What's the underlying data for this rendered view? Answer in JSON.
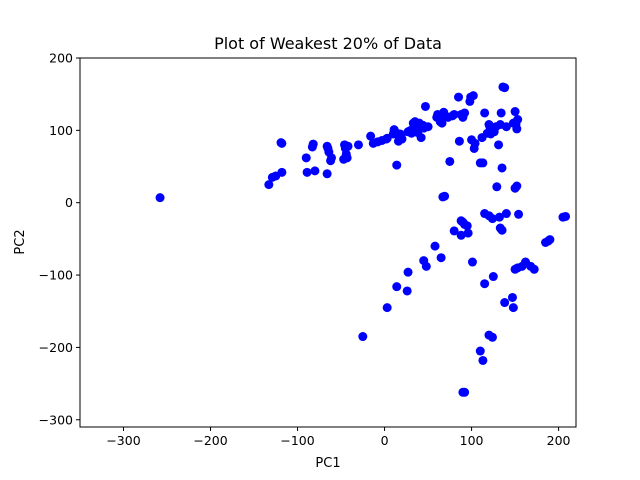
{
  "chart_data": {
    "type": "scatter",
    "title": "Plot of Weakest 20% of Data",
    "xlabel": "PC1",
    "ylabel": "PC2",
    "xlim": [
      -350,
      220
    ],
    "ylim": [
      -310,
      200
    ],
    "xticks": [
      -300,
      -200,
      -100,
      0,
      100,
      200
    ],
    "yticks": [
      -300,
      -200,
      -100,
      0,
      100,
      200
    ],
    "xtick_labels": [
      "−300",
      "−200",
      "−100",
      "0",
      "100",
      "200"
    ],
    "ytick_labels": [
      "−300",
      "−200",
      "−100",
      "0",
      "100",
      "200"
    ],
    "grid": false,
    "marker_color": "#0000ff",
    "points": [
      [
        -258,
        7
      ],
      [
        -133,
        25
      ],
      [
        -129,
        35
      ],
      [
        -125,
        37
      ],
      [
        -118,
        42
      ],
      [
        -119,
        83
      ],
      [
        -118,
        82
      ],
      [
        -90,
        62
      ],
      [
        -89,
        42
      ],
      [
        -83,
        77
      ],
      [
        -82,
        81
      ],
      [
        -80,
        44
      ],
      [
        -66,
        78
      ],
      [
        -66,
        40
      ],
      [
        -65,
        75
      ],
      [
        -64,
        70
      ],
      [
        -62,
        58
      ],
      [
        -61,
        62
      ],
      [
        -47,
        60
      ],
      [
        -46,
        80
      ],
      [
        -45,
        75
      ],
      [
        -44,
        67
      ],
      [
        -43,
        62
      ],
      [
        -42,
        78
      ],
      [
        -30,
        80
      ],
      [
        -16,
        92
      ],
      [
        -13,
        82
      ],
      [
        -8,
        84
      ],
      [
        -3,
        86
      ],
      [
        2,
        88
      ],
      [
        3,
        89
      ],
      [
        10,
        95
      ],
      [
        11,
        101
      ],
      [
        13,
        97
      ],
      [
        14,
        52
      ],
      [
        16,
        85
      ],
      [
        17,
        90
      ],
      [
        18,
        95
      ],
      [
        19,
        92
      ],
      [
        20,
        88
      ],
      [
        27,
        98
      ],
      [
        30,
        100
      ],
      [
        31,
        96
      ],
      [
        33,
        110
      ],
      [
        35,
        112
      ],
      [
        36,
        105
      ],
      [
        38,
        97
      ],
      [
        40,
        110
      ],
      [
        42,
        90
      ],
      [
        44,
        107
      ],
      [
        45,
        103
      ],
      [
        47,
        133
      ],
      [
        50,
        105
      ],
      [
        60,
        118
      ],
      [
        61,
        122
      ],
      [
        64,
        112
      ],
      [
        66,
        110
      ],
      [
        68,
        125
      ],
      [
        70,
        120
      ],
      [
        73,
        118
      ],
      [
        75,
        57
      ],
      [
        78,
        120
      ],
      [
        80,
        122
      ],
      [
        85,
        146
      ],
      [
        86,
        85
      ],
      [
        88,
        122
      ],
      [
        90,
        118
      ],
      [
        92,
        124
      ],
      [
        98,
        140
      ],
      [
        99,
        146
      ],
      [
        100,
        87
      ],
      [
        102,
        148
      ],
      [
        103,
        75
      ],
      [
        104,
        82
      ],
      [
        110,
        55
      ],
      [
        112,
        90
      ],
      [
        113,
        55
      ],
      [
        115,
        124
      ],
      [
        118,
        96
      ],
      [
        120,
        108
      ],
      [
        121,
        105
      ],
      [
        122,
        95
      ],
      [
        124,
        100
      ],
      [
        126,
        98
      ],
      [
        128,
        105
      ],
      [
        129,
        22
      ],
      [
        131,
        80
      ],
      [
        133,
        108
      ],
      [
        134,
        124
      ],
      [
        136,
        160
      ],
      [
        138,
        159
      ],
      [
        140,
        105
      ],
      [
        135,
        48
      ],
      [
        148,
        110
      ],
      [
        150,
        126
      ],
      [
        151,
        108
      ],
      [
        152,
        102
      ],
      [
        153,
        115
      ],
      [
        67,
        8
      ],
      [
        69,
        9
      ],
      [
        150,
        20
      ],
      [
        152,
        23
      ],
      [
        115,
        -15
      ],
      [
        120,
        -18
      ],
      [
        124,
        -22
      ],
      [
        132,
        -20
      ],
      [
        133,
        -35
      ],
      [
        135,
        -38
      ],
      [
        140,
        -15
      ],
      [
        154,
        -16
      ],
      [
        88,
        -25
      ],
      [
        90,
        -27
      ],
      [
        92,
        -30
      ],
      [
        95,
        -32
      ],
      [
        80,
        -39
      ],
      [
        88,
        -45
      ],
      [
        96,
        -42
      ],
      [
        58,
        -60
      ],
      [
        45,
        -80
      ],
      [
        48,
        -88
      ],
      [
        65,
        -76
      ],
      [
        101,
        -82
      ],
      [
        27,
        -96
      ],
      [
        150,
        -92
      ],
      [
        153,
        -90
      ],
      [
        158,
        -88
      ],
      [
        162,
        -82
      ],
      [
        168,
        -88
      ],
      [
        172,
        -92
      ],
      [
        185,
        -55
      ],
      [
        188,
        -53
      ],
      [
        190,
        -51
      ],
      [
        205,
        -20
      ],
      [
        208,
        -19
      ],
      [
        115,
        -112
      ],
      [
        125,
        -102
      ],
      [
        14,
        -116
      ],
      [
        26,
        -122
      ],
      [
        138,
        -138
      ],
      [
        147,
        -131
      ],
      [
        148,
        -145
      ],
      [
        3,
        -145
      ],
      [
        -25,
        -185
      ],
      [
        120,
        -183
      ],
      [
        124,
        -186
      ],
      [
        110,
        -205
      ],
      [
        113,
        -218
      ],
      [
        90,
        -262
      ],
      [
        92,
        -262
      ]
    ]
  }
}
